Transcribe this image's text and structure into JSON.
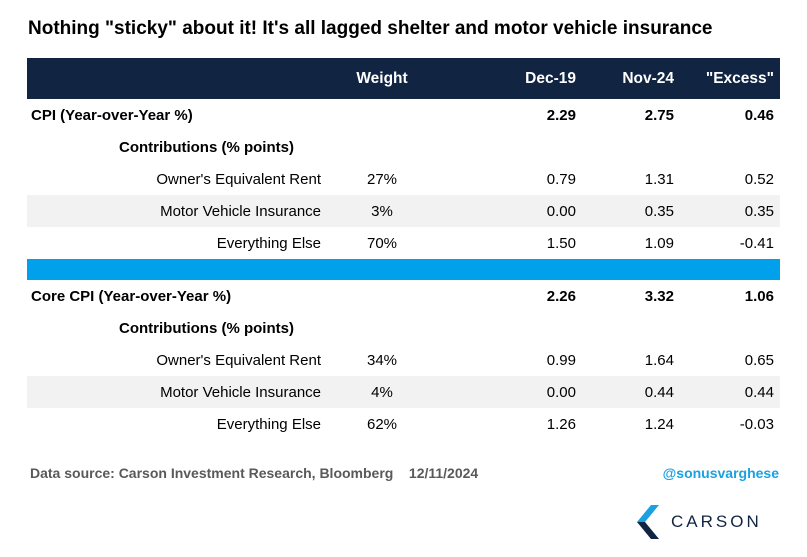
{
  "title": "Nothing \"sticky\" about it! It's all lagged shelter and motor vehicle insurance",
  "colors": {
    "header_bg": "#112543",
    "separator": "#00a0eb",
    "handle": "#1ba1e2",
    "shade": "#f2f2f2"
  },
  "chart_data": {
    "type": "table",
    "columns": [
      "",
      "Weight",
      "Dec-19",
      "Nov-24",
      "\"Excess\""
    ],
    "sections": [
      {
        "title": "CPI (Year-over-Year %)",
        "dec19": "2.29",
        "nov24": "2.75",
        "excess": "0.46",
        "contributions_label": "Contributions (% points)",
        "rows": [
          {
            "label": "Owner's Equivalent Rent",
            "weight": "27%",
            "dec19": "0.79",
            "nov24": "1.31",
            "excess": "0.52"
          },
          {
            "label": "Motor Vehicle Insurance",
            "weight": "3%",
            "dec19": "0.00",
            "nov24": "0.35",
            "excess": "0.35"
          },
          {
            "label": "Everything Else",
            "weight": "70%",
            "dec19": "1.50",
            "nov24": "1.09",
            "excess": "-0.41"
          }
        ]
      },
      {
        "title": "Core CPI (Year-over-Year %)",
        "dec19": "2.26",
        "nov24": "3.32",
        "excess": "1.06",
        "contributions_label": "Contributions (% points)",
        "rows": [
          {
            "label": "Owner's Equivalent Rent",
            "weight": "34%",
            "dec19": "0.99",
            "nov24": "1.64",
            "excess": "0.65"
          },
          {
            "label": "Motor Vehicle Insurance",
            "weight": "4%",
            "dec19": "0.00",
            "nov24": "0.44",
            "excess": "0.44"
          },
          {
            "label": "Everything Else",
            "weight": "62%",
            "dec19": "1.26",
            "nov24": "1.24",
            "excess": "-0.03"
          }
        ]
      }
    ]
  },
  "footer": {
    "source": "Data source: Carson Investment Research, Bloomberg",
    "date": "12/11/2024",
    "handle": "@sonusvarghese"
  },
  "logo": {
    "text": "CARSON",
    "icon": "carson-chevron-icon"
  }
}
